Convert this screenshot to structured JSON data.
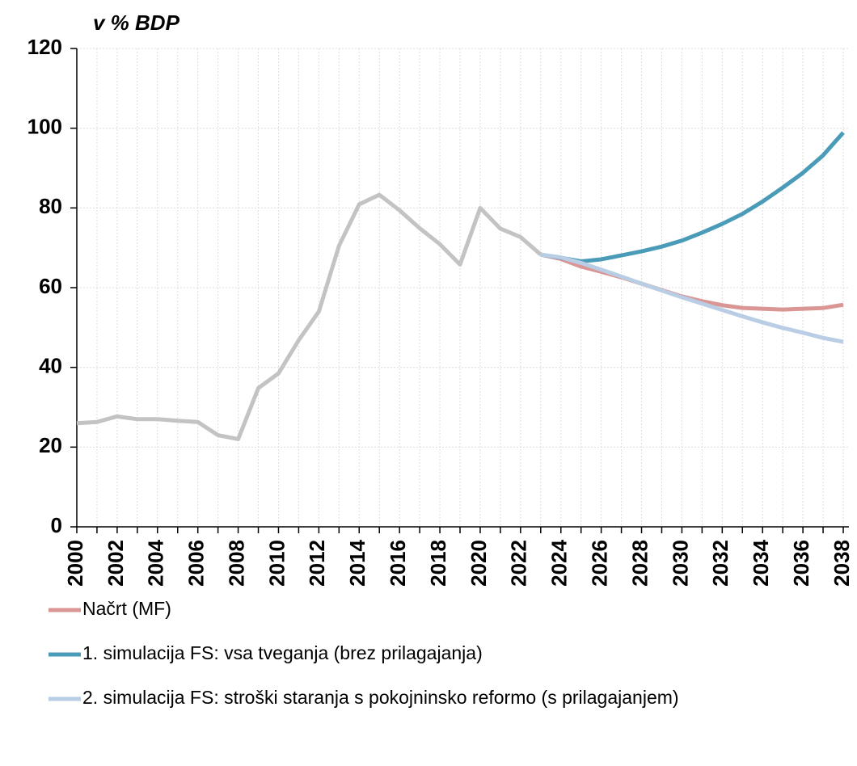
{
  "chart_data": {
    "type": "line",
    "y_label": "v % BDP",
    "x": [
      2000,
      2001,
      2002,
      2003,
      2004,
      2005,
      2006,
      2007,
      2008,
      2009,
      2010,
      2011,
      2012,
      2013,
      2014,
      2015,
      2016,
      2017,
      2018,
      2019,
      2020,
      2021,
      2022,
      2023,
      2024,
      2025,
      2026,
      2027,
      2028,
      2029,
      2030,
      2031,
      2032,
      2033,
      2034,
      2035,
      2036,
      2037,
      2038
    ],
    "xlim": [
      2000,
      2038
    ],
    "xticks": [
      2000,
      2002,
      2004,
      2006,
      2008,
      2010,
      2012,
      2014,
      2016,
      2018,
      2020,
      2022,
      2024,
      2026,
      2028,
      2030,
      2032,
      2034,
      2036,
      2038
    ],
    "ylim": [
      0,
      120
    ],
    "yticks": [
      0,
      20,
      40,
      60,
      80,
      100,
      120
    ],
    "grid": true,
    "legend": "bottom",
    "series": [
      {
        "color": "#c3c3c3",
        "values": [
          26,
          26.3,
          27.7,
          27,
          27,
          26.6,
          26.3,
          23,
          22,
          34.8,
          38.5,
          46.8,
          54,
          70.5,
          80.9,
          83.3,
          79.4,
          74.9,
          70.9,
          65.8,
          80,
          74.8,
          72.7,
          68.3,
          null,
          null,
          null,
          null,
          null,
          null,
          null,
          null,
          null,
          null,
          null,
          null,
          null,
          null,
          null
        ]
      },
      {
        "name": "Načrt (MF)",
        "color": "#d99694",
        "values": [
          null,
          null,
          null,
          null,
          null,
          null,
          null,
          null,
          null,
          null,
          null,
          null,
          null,
          null,
          null,
          null,
          null,
          null,
          null,
          null,
          null,
          null,
          null,
          68.3,
          67.2,
          65.3,
          64,
          62.6,
          61,
          59.4,
          57.8,
          56.6,
          55.6,
          54.9,
          54.7,
          54.5,
          54.7,
          54.9,
          55.7
        ]
      },
      {
        "name": "1. simulacija FS: vsa tveganja (brez prilagajanja)",
        "color": "#4a9bb8",
        "values": [
          null,
          null,
          null,
          null,
          null,
          null,
          null,
          null,
          null,
          null,
          null,
          null,
          null,
          null,
          null,
          null,
          null,
          null,
          null,
          null,
          null,
          null,
          null,
          68.3,
          67.5,
          66.6,
          67.1,
          68.1,
          69.1,
          70.3,
          71.8,
          73.8,
          76,
          78.5,
          81.6,
          85.1,
          88.8,
          93.2,
          98.9
        ]
      },
      {
        "name": "2. simulacija FS: stroški staranja s pokojninsko reformo (s prilagajanjem)",
        "color": "#b9cde5",
        "values": [
          null,
          null,
          null,
          null,
          null,
          null,
          null,
          null,
          null,
          null,
          null,
          null,
          null,
          null,
          null,
          null,
          null,
          null,
          null,
          null,
          null,
          null,
          null,
          68.3,
          67.6,
          66.2,
          64.5,
          62.8,
          61,
          59.3,
          57.6,
          56,
          54.4,
          52.8,
          51.3,
          49.9,
          48.7,
          47.4,
          46.4
        ]
      }
    ]
  }
}
